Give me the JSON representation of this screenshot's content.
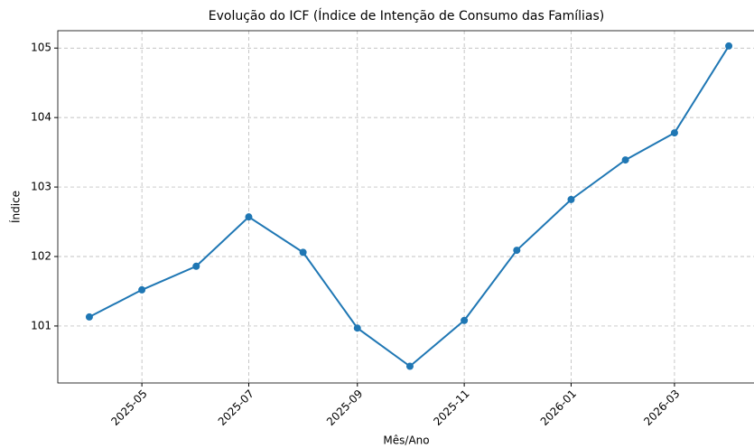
{
  "chart_data": {
    "type": "line",
    "title": "Evolução do ICF (Índice de Intenção de Consumo das Famílias)",
    "x_label": "Mês/Ano",
    "y_label": "Índice",
    "x": [
      "2025-04",
      "2025-05",
      "2025-06",
      "2025-07",
      "2025-08",
      "2025-09",
      "2025-10",
      "2025-11",
      "2025-12",
      "2026-01",
      "2026-02",
      "2026-03",
      "2026-04"
    ],
    "series": [
      {
        "name": "ICF",
        "color": "#1f77b4",
        "values": [
          101.13,
          101.52,
          101.86,
          102.57,
          102.06,
          100.97,
          100.42,
          101.08,
          102.09,
          102.82,
          103.39,
          103.78,
          105.03
        ]
      }
    ],
    "xlim": [
      "2025-03-14",
      "2026-04-19"
    ],
    "xticks": [
      "2025-05",
      "2025-07",
      "2025-09",
      "2025-11",
      "2026-01",
      "2026-03"
    ],
    "ylim": [
      100.18,
      105.25
    ],
    "yticks": [
      101,
      102,
      103,
      104,
      105
    ],
    "grid": true
  }
}
